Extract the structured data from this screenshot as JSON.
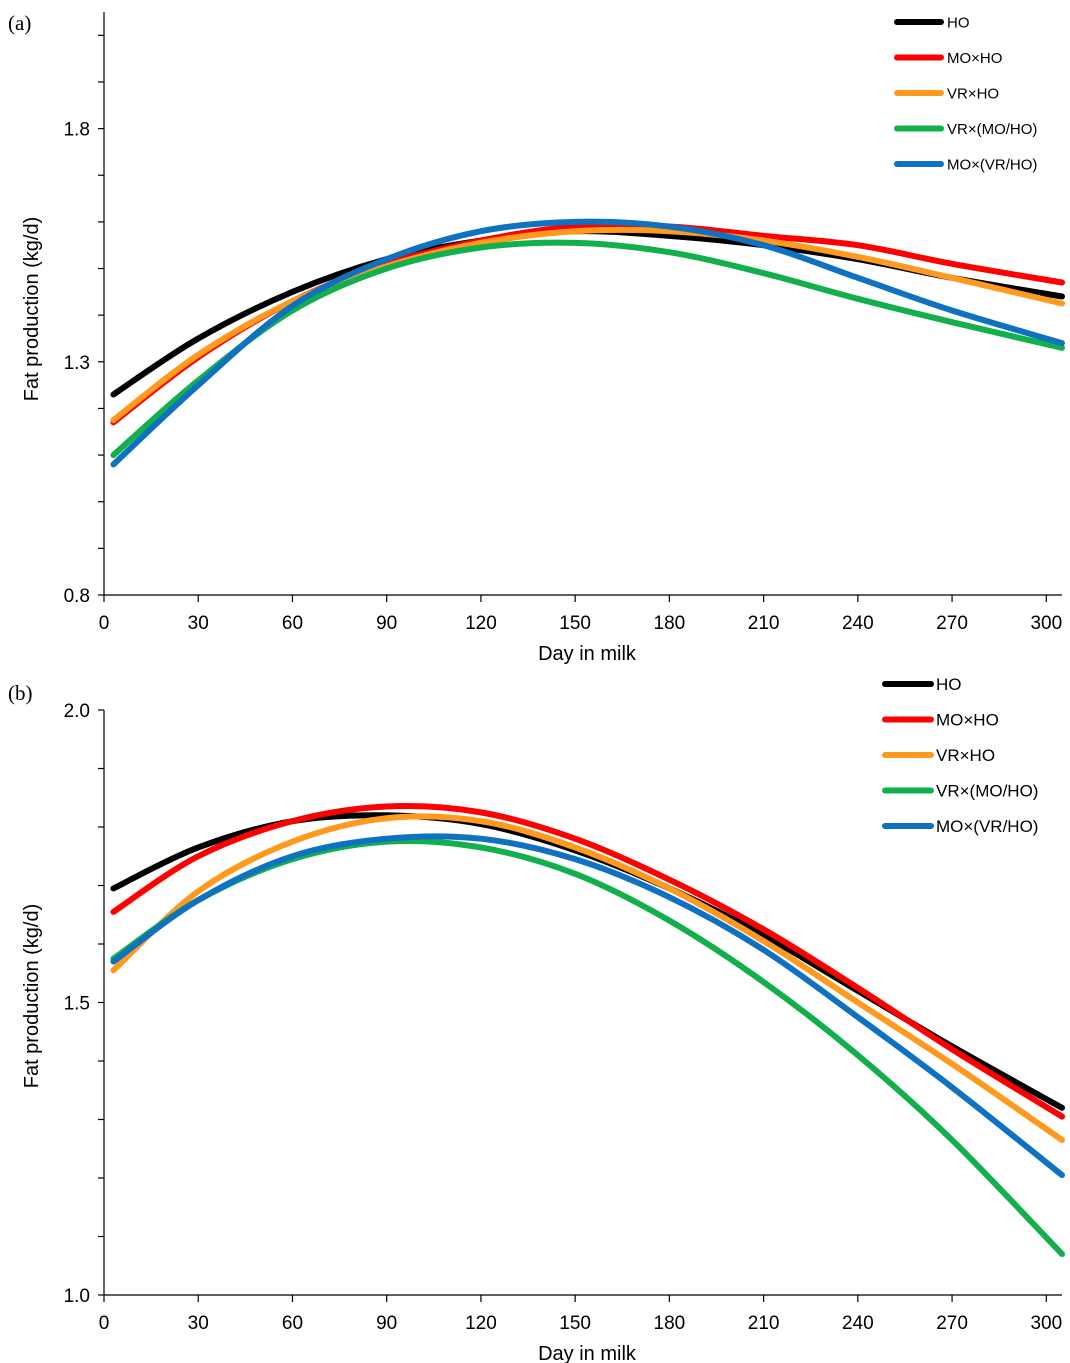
{
  "colors": {
    "HO": "#000000",
    "MO×HO": "#ff0000",
    "VR×HO": "#ff9a1f",
    "VR×(MO/HO)": "#12b04c",
    "MO×(VR/HO)": "#0f72c0"
  },
  "chart_data": [
    {
      "type": "line",
      "panel_label": "(a)",
      "title": "",
      "xlabel": "Day in milk",
      "ylabel": "Fat production (kg/d)",
      "xlim": [
        0,
        305
      ],
      "ylim": [
        0.8,
        2.05
      ],
      "xticks": [
        0,
        30,
        60,
        90,
        120,
        150,
        180,
        210,
        240,
        270,
        300
      ],
      "yticks": [
        0.8,
        1.3,
        1.8
      ],
      "ytick_labels": [
        "0.8",
        "1.3",
        "1.8"
      ],
      "grid": false,
      "legend": "top-right",
      "series": [
        {
          "name": "HO",
          "x": [
            3,
            30,
            60,
            90,
            120,
            150,
            180,
            210,
            240,
            270,
            305
          ],
          "values": [
            1.23,
            1.35,
            1.45,
            1.52,
            1.56,
            1.58,
            1.57,
            1.55,
            1.52,
            1.48,
            1.44
          ]
        },
        {
          "name": "MO×HO",
          "x": [
            3,
            30,
            60,
            90,
            120,
            150,
            180,
            210,
            240,
            270,
            305
          ],
          "values": [
            1.17,
            1.31,
            1.43,
            1.51,
            1.56,
            1.59,
            1.59,
            1.57,
            1.55,
            1.51,
            1.47
          ]
        },
        {
          "name": "VR×HO",
          "x": [
            3,
            30,
            60,
            90,
            120,
            150,
            180,
            210,
            240,
            270,
            305
          ],
          "values": [
            1.175,
            1.315,
            1.43,
            1.505,
            1.555,
            1.58,
            1.58,
            1.56,
            1.525,
            1.48,
            1.425
          ]
        },
        {
          "name": "VR×(MO/HO)",
          "x": [
            3,
            30,
            60,
            90,
            120,
            150,
            180,
            210,
            240,
            270,
            305
          ],
          "values": [
            1.1,
            1.26,
            1.41,
            1.5,
            1.545,
            1.555,
            1.535,
            1.49,
            1.435,
            1.385,
            1.33
          ]
        },
        {
          "name": "MO×(VR/HO)",
          "x": [
            3,
            30,
            60,
            90,
            120,
            150,
            180,
            210,
            240,
            270,
            305
          ],
          "values": [
            1.08,
            1.25,
            1.42,
            1.52,
            1.58,
            1.6,
            1.59,
            1.55,
            1.48,
            1.41,
            1.34
          ]
        }
      ]
    },
    {
      "type": "line",
      "panel_label": "(b)",
      "title": "",
      "xlabel": "Day in milk",
      "ylabel": "Fat production (kg/d)",
      "xlim": [
        0,
        305
      ],
      "ylim": [
        1.0,
        2.0
      ],
      "xticks": [
        0,
        30,
        60,
        90,
        120,
        150,
        180,
        210,
        240,
        270,
        300
      ],
      "yticks": [
        1.0,
        1.5,
        2.0
      ],
      "ytick_labels": [
        "1.0",
        "1.5",
        "2.0"
      ],
      "grid": false,
      "legend": "top-right",
      "series": [
        {
          "name": "HO",
          "x": [
            3,
            30,
            60,
            90,
            120,
            150,
            180,
            210,
            240,
            270,
            305
          ],
          "values": [
            1.695,
            1.765,
            1.81,
            1.82,
            1.805,
            1.76,
            1.695,
            1.615,
            1.52,
            1.425,
            1.32
          ]
        },
        {
          "name": "MO×HO",
          "x": [
            3,
            30,
            60,
            90,
            120,
            150,
            180,
            210,
            240,
            270,
            305
          ],
          "values": [
            1.655,
            1.75,
            1.81,
            1.835,
            1.825,
            1.78,
            1.71,
            1.625,
            1.525,
            1.42,
            1.305
          ]
        },
        {
          "name": "VR×HO",
          "x": [
            3,
            30,
            60,
            90,
            120,
            150,
            180,
            210,
            240,
            270,
            305
          ],
          "values": [
            1.555,
            1.69,
            1.775,
            1.815,
            1.81,
            1.765,
            1.695,
            1.605,
            1.5,
            1.395,
            1.265
          ]
        },
        {
          "name": "VR×(MO/HO)",
          "x": [
            3,
            30,
            60,
            90,
            120,
            150,
            180,
            210,
            240,
            270,
            305
          ],
          "values": [
            1.575,
            1.675,
            1.745,
            1.775,
            1.765,
            1.72,
            1.64,
            1.535,
            1.41,
            1.265,
            1.07
          ]
        },
        {
          "name": "MO×(VR/HO)",
          "x": [
            3,
            30,
            60,
            90,
            120,
            150,
            180,
            210,
            240,
            270,
            305
          ],
          "values": [
            1.57,
            1.675,
            1.75,
            1.78,
            1.78,
            1.745,
            1.68,
            1.59,
            1.475,
            1.355,
            1.205
          ]
        }
      ]
    }
  ]
}
